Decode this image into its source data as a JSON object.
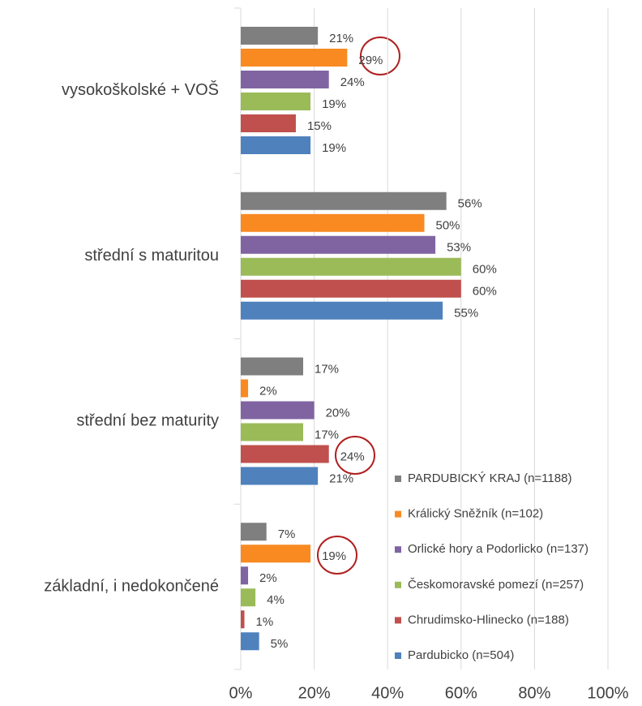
{
  "chart_data": {
    "type": "hbar",
    "categories": [
      "vysokoškolské + VOŠ",
      "střední s maturitou",
      "střední bez maturity",
      "základní, i nedokončené"
    ],
    "series": [
      {
        "name": "PARDUBICKÝ KRAJ (n=1188)",
        "color": "#7f7f7f",
        "values": [
          21,
          56,
          17,
          7
        ],
        "value_labels": [
          "21%",
          "56%",
          "17%",
          "7%"
        ]
      },
      {
        "name": "Králický Sněžník (n=102)",
        "color": "#f98a22",
        "values": [
          29,
          50,
          2,
          19
        ],
        "value_labels": [
          "29%",
          "50%",
          "2%",
          "19%"
        ]
      },
      {
        "name": "Orlické hory a Podorlicko (n=137)",
        "color": "#8064a2",
        "values": [
          24,
          53,
          20,
          2
        ],
        "value_labels": [
          "24%",
          "53%",
          "20%",
          "2%"
        ]
      },
      {
        "name": "Českomoravské pomezí (n=257)",
        "color": "#9bbb59",
        "values": [
          19,
          60,
          17,
          4
        ],
        "value_labels": [
          "19%",
          "60%",
          "17%",
          "4%"
        ]
      },
      {
        "name": "Chrudimsko-Hlinecko (n=188)",
        "color": "#c0504d",
        "values": [
          15,
          60,
          24,
          1
        ],
        "value_labels": [
          "15%",
          "60%",
          "24%",
          "1%"
        ]
      },
      {
        "name": "Pardubicko (n=504)",
        "color": "#4f81bd",
        "values": [
          19,
          55,
          21,
          5
        ],
        "value_labels": [
          "19%",
          "55%",
          "21%",
          "5%"
        ]
      }
    ],
    "xlim": [
      0,
      100
    ],
    "xticks": [
      {
        "value": 0,
        "label": "0%"
      },
      {
        "value": 20,
        "label": "20%"
      },
      {
        "value": 40,
        "label": "40%"
      },
      {
        "value": 60,
        "label": "60%"
      },
      {
        "value": 80,
        "label": "80%"
      },
      {
        "value": 100,
        "label": "100%"
      }
    ],
    "grid": true,
    "legend": "lower right"
  }
}
